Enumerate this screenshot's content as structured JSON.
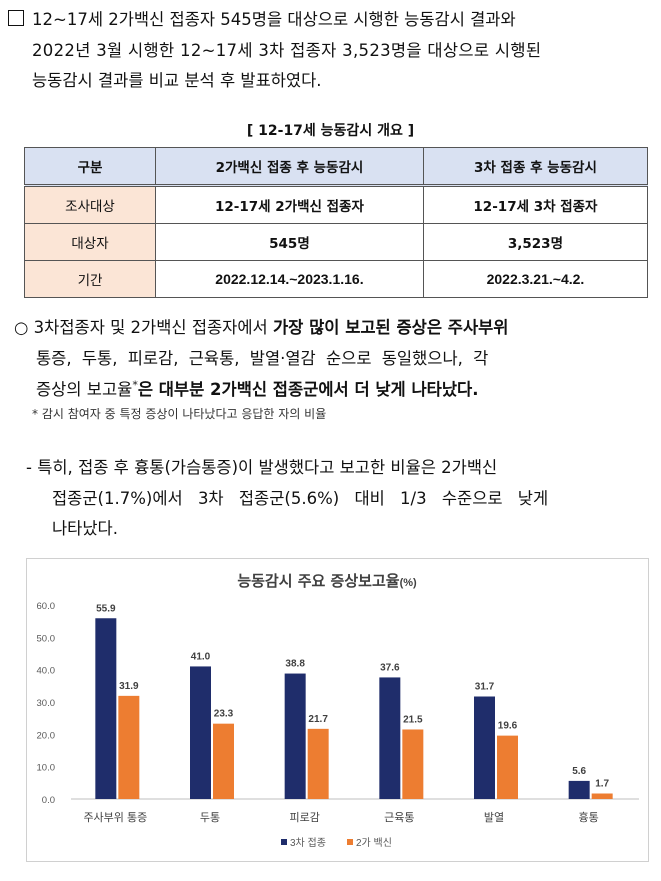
{
  "para1": {
    "line1": "12~17세 2가백신 접종자 545명을 대상으로 시행한 능동감시 결과와",
    "line2": "2022년 3월 시행한 12~17세 3차 접종자 3,523명을 대상으로 시행된",
    "line3": "능동감시 결과를 비교 분석 후 발표하였다."
  },
  "table": {
    "caption": "[ 12-17세 능동감시 개요 ]",
    "headers": [
      "구분",
      "2가백신 접종 후 능동감시",
      "3차 접종 후 능동감시"
    ],
    "rows": [
      {
        "label": "조사대상",
        "a": "12-17세 2가백신 접종자",
        "b": "12-17세 3차 접종자"
      },
      {
        "label": "대상자",
        "a": "545명",
        "b": "3,523명"
      },
      {
        "label": "기간",
        "a": "2022.12.14.~2023.1.16.",
        "b": "2022.3.21.~4.2."
      }
    ]
  },
  "para2": {
    "bullet": "○",
    "line1a": "3차접종자 및 2가백신 접종자에서 ",
    "line1b": "가장 많이 보고된 증상은 주사부위",
    "line2": "통증, 두통, 피로감, 근육통, 발열·열감 순으로 동일했으나, 각",
    "line3a": "증상의 보고율",
    "line3sup": "*",
    "line3b": "은 대부분 2가백신 접종군에서 더 낮게 나타났다.",
    "note": "* 감시 참여자 중 특정 증상이 나타났다고 응답한 자의 비율"
  },
  "para3": {
    "line1a": "- 특히, ",
    "line1b": "접종 후 흉통(가슴통증)이 발생했다고 보고한 비율은 2가백신",
    "line2": "접종군(1.7%)에서 3차 접종군(5.6%) 대비 1/3 수준으로 낮게",
    "line3": "나타났다."
  },
  "chart_data": {
    "type": "bar",
    "title": "능동감시 주요 증상보고율",
    "title_unit": "(%)",
    "categories": [
      "주사부위 통증",
      "두통",
      "피로감",
      "근육통",
      "발열",
      "흉통"
    ],
    "series": [
      {
        "name": "3차 접종",
        "color": "#1f2d6b",
        "values": [
          55.9,
          41.0,
          38.8,
          37.6,
          31.7,
          5.6
        ]
      },
      {
        "name": "2가 백신",
        "color": "#ed7d31",
        "values": [
          31.9,
          23.3,
          21.7,
          21.5,
          19.6,
          1.7
        ]
      }
    ],
    "ylim": [
      0,
      60
    ],
    "yticks": [
      "0.0",
      "10.0",
      "20.0",
      "30.0",
      "40.0",
      "50.0",
      "60.0"
    ],
    "grid": false,
    "legend": "bottom"
  }
}
